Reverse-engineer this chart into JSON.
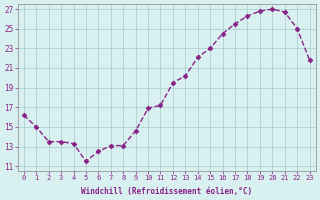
{
  "x": [
    0,
    1,
    2,
    3,
    4,
    5,
    6,
    7,
    8,
    9,
    10,
    11,
    12,
    13,
    14,
    15,
    16,
    17,
    18,
    19,
    20,
    21,
    22,
    23
  ],
  "y": [
    16.2,
    15.0,
    13.5,
    13.5,
    13.3,
    11.5,
    12.5,
    13.1,
    13.1,
    14.6,
    16.9,
    17.2,
    19.5,
    20.2,
    22.1,
    23.0,
    24.5,
    25.5,
    26.3,
    26.8,
    27.0,
    26.7,
    25.0,
    21.8
  ],
  "line_color": "#882288",
  "marker_color": "#882288",
  "bg_color": "#d8f0f0",
  "grid_color": "#aacccc",
  "axis_color": "#882288",
  "xlabel": "Windchill (Refroidissement éolien,°C)",
  "ylim_min": 10.5,
  "ylim_max": 27.5,
  "xlim_min": -0.5,
  "xlim_max": 23.5,
  "yticks": [
    11,
    13,
    15,
    17,
    19,
    21,
    23,
    25,
    27
  ],
  "xticks": [
    0,
    1,
    2,
    3,
    4,
    5,
    6,
    7,
    8,
    9,
    10,
    11,
    12,
    13,
    14,
    15,
    16,
    17,
    18,
    19,
    20,
    21,
    22,
    23
  ],
  "font_family": "monospace"
}
